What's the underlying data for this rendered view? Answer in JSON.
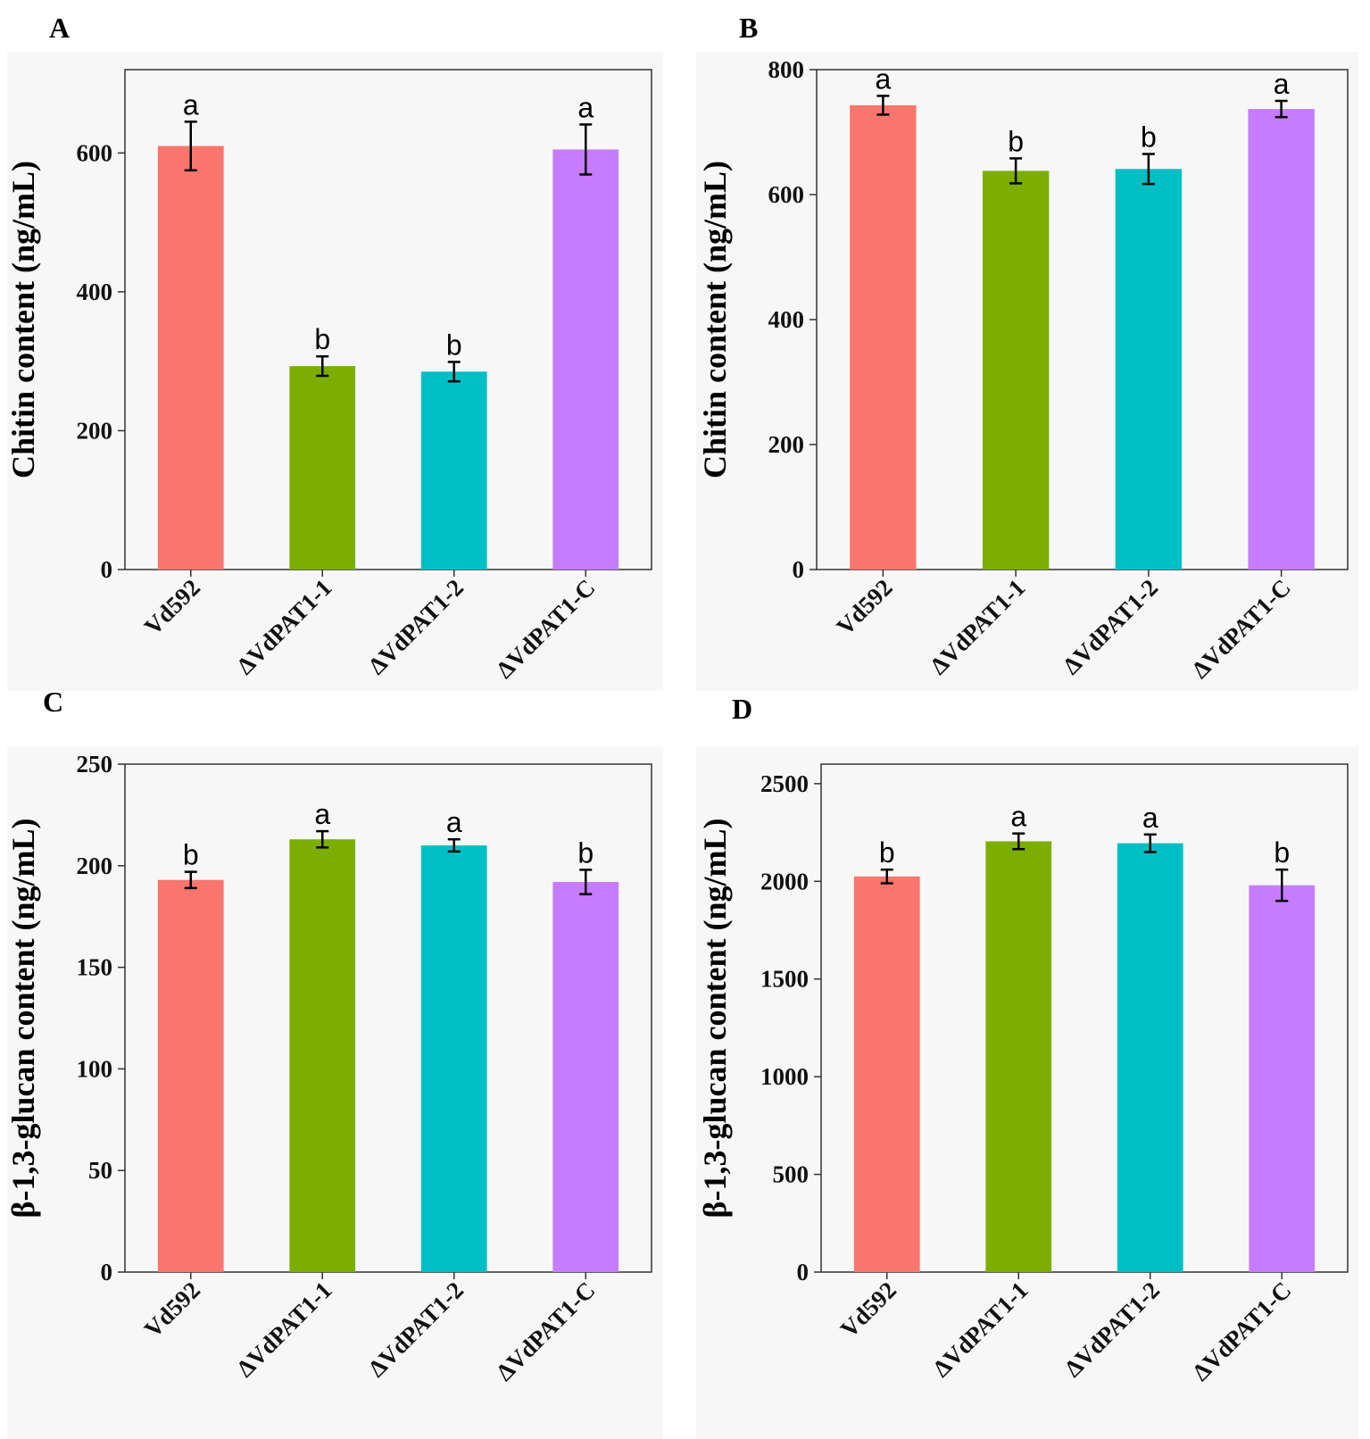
{
  "chart_data": [
    {
      "panel": "A",
      "type": "bar",
      "ylabel": "Chitin content (ng/mL)",
      "ylim": [
        0,
        720
      ],
      "yticks": [
        0,
        200,
        400,
        600
      ],
      "categories": [
        "Vd592",
        "ΔVdPAT1-1",
        "ΔVdPAT1-2",
        "ΔVdPAT1-C"
      ],
      "values": [
        610,
        293,
        285,
        605
      ],
      "errors": [
        35,
        14,
        14,
        36
      ],
      "significance": [
        "a",
        "b",
        "b",
        "a"
      ],
      "colors": [
        "#F8766D",
        "#7CAE00",
        "#00BFC4",
        "#C77CFF"
      ]
    },
    {
      "panel": "B",
      "type": "bar",
      "ylabel": "Chitin content (ng/mL)",
      "ylim": [
        0,
        800
      ],
      "yticks": [
        0,
        200,
        400,
        600,
        800
      ],
      "categories": [
        "Vd592",
        "ΔVdPAT1-1",
        "ΔVdPAT1-2",
        "ΔVdPAT1-C"
      ],
      "values": [
        743,
        638,
        641,
        737
      ],
      "errors": [
        15,
        20,
        24,
        13
      ],
      "significance": [
        "a",
        "b",
        "b",
        "a"
      ],
      "colors": [
        "#F8766D",
        "#7CAE00",
        "#00BFC4",
        "#C77CFF"
      ]
    },
    {
      "panel": "C",
      "type": "bar",
      "ylabel": "β-1,3-glucan content (ng/mL)",
      "ylim": [
        0,
        250
      ],
      "yticks": [
        0,
        50,
        100,
        150,
        200,
        250
      ],
      "categories": [
        "Vd592",
        "ΔVdPAT1-1",
        "ΔVdPAT1-2",
        "ΔVdPAT1-C"
      ],
      "values": [
        193,
        213,
        210,
        192
      ],
      "errors": [
        4,
        4,
        3,
        6
      ],
      "significance": [
        "b",
        "a",
        "a",
        "b"
      ],
      "colors": [
        "#F8766D",
        "#7CAE00",
        "#00BFC4",
        "#C77CFF"
      ]
    },
    {
      "panel": "D",
      "type": "bar",
      "ylabel": "β-1,3-glucan content (ng/mL)",
      "ylim": [
        0,
        2600
      ],
      "yticks": [
        0,
        500,
        1000,
        1500,
        2000,
        2500
      ],
      "categories": [
        "Vd592",
        "ΔVdPAT1-1",
        "ΔVdPAT1-2",
        "ΔVdPAT1-C"
      ],
      "values": [
        2025,
        2205,
        2195,
        1980
      ],
      "errors": [
        35,
        40,
        45,
        80
      ],
      "significance": [
        "b",
        "a",
        "a",
        "b"
      ],
      "colors": [
        "#F8766D",
        "#7CAE00",
        "#00BFC4",
        "#C77CFF"
      ]
    }
  ]
}
